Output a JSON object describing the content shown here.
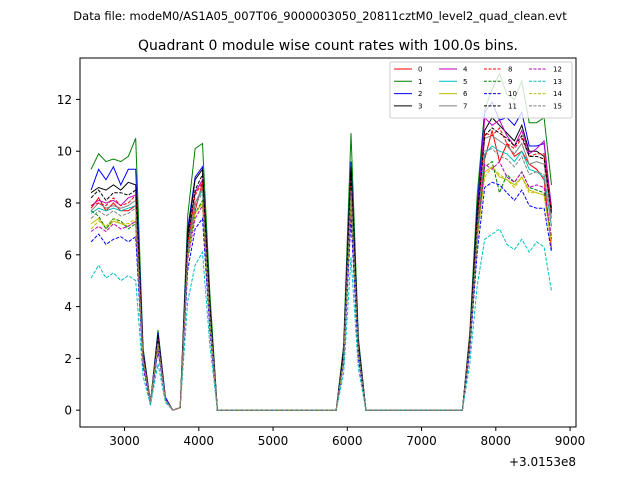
{
  "chart_data": {
    "type": "line",
    "suptitle": "Data file: modeM0/AS1A05_007T06_9000003050_20811cztM0_level2_quad_clean.evt",
    "title": "Quadrant 0 module wise count rates with 100.0s bins.",
    "xlabel": "",
    "ylabel": "",
    "x_offset_label": "+3.0153e8",
    "xlim": [
      2400,
      9080
    ],
    "ylim": [
      -0.65,
      13.6
    ],
    "xticks": [
      3000,
      4000,
      5000,
      6000,
      7000,
      8000,
      9000
    ],
    "yticks": [
      0,
      2,
      4,
      6,
      8,
      10,
      12
    ],
    "legend_position": "top-right",
    "x": [
      2550,
      2650,
      2750,
      2850,
      2950,
      3050,
      3150,
      3250,
      3350,
      3450,
      3550,
      3650,
      3750,
      3850,
      3950,
      4050,
      4150,
      4250,
      5850,
      5950,
      6050,
      6150,
      6250,
      7550,
      7650,
      7750,
      7850,
      7950,
      8050,
      8150,
      8250,
      8350,
      8450,
      8550,
      8650,
      8750
    ],
    "series": [
      {
        "name": "0",
        "color": "#ff0000",
        "dash": "solid",
        "values": [
          7.8,
          8.2,
          7.7,
          8.0,
          7.7,
          7.7,
          7.9,
          2.0,
          0.3,
          2.6,
          0.4,
          0,
          0.1,
          6.0,
          7.7,
          8.8,
          3.5,
          0,
          0,
          2.0,
          8.4,
          2.2,
          0,
          0,
          2.5,
          6.9,
          9.7,
          10.8,
          9.6,
          10.3,
          9.8,
          10.0,
          9.5,
          9.3,
          8.9,
          6.2
        ]
      },
      {
        "name": "1",
        "color": "#008000",
        "dash": "solid",
        "values": [
          9.3,
          9.9,
          9.6,
          9.7,
          9.6,
          9.8,
          10.5,
          2.4,
          0.3,
          3.1,
          0.5,
          0,
          0.1,
          7.5,
          10.1,
          10.3,
          4.5,
          0,
          0,
          2.5,
          10.7,
          2.8,
          0,
          0,
          3.0,
          8.3,
          11.6,
          12.4,
          13.0,
          12.2,
          12.0,
          12.7,
          11.1,
          11.1,
          11.3,
          8.7
        ]
      },
      {
        "name": "2",
        "color": "#0000ff",
        "dash": "solid",
        "values": [
          8.5,
          9.3,
          8.9,
          9.4,
          8.7,
          9.3,
          9.3,
          2.3,
          0.3,
          3.0,
          0.5,
          0,
          0.1,
          7.0,
          9.0,
          9.4,
          4.0,
          0,
          0,
          2.3,
          9.6,
          2.6,
          0,
          0,
          2.8,
          7.8,
          11.5,
          11.9,
          11.2,
          11.3,
          11.0,
          11.5,
          10.2,
          10.2,
          10.3,
          7.8
        ]
      },
      {
        "name": "3",
        "color": "#000000",
        "dash": "solid",
        "values": [
          8.4,
          8.6,
          8.5,
          8.7,
          8.5,
          8.8,
          8.7,
          2.2,
          0.3,
          2.9,
          0.4,
          0,
          0.1,
          6.8,
          8.9,
          9.3,
          4.0,
          0,
          0,
          2.2,
          9.4,
          2.5,
          0,
          0,
          2.8,
          7.6,
          10.8,
          11.3,
          11.0,
          10.7,
          10.4,
          11.0,
          10.0,
          10.0,
          9.8,
          7.8
        ]
      },
      {
        "name": "4",
        "color": "#bf00bf",
        "dash": "solid",
        "values": [
          7.9,
          8.1,
          8.0,
          8.1,
          7.9,
          8.2,
          8.3,
          2.1,
          0.3,
          2.8,
          0.4,
          0,
          0.1,
          6.5,
          8.4,
          8.9,
          3.8,
          0,
          0,
          2.1,
          9.0,
          2.4,
          0,
          0,
          2.7,
          7.3,
          11.3,
          11.0,
          11.2,
          10.6,
          10.2,
          10.8,
          9.9,
          10.1,
          10.4,
          7.7
        ]
      },
      {
        "name": "5",
        "color": "#00bfbf",
        "dash": "solid",
        "values": [
          7.6,
          7.8,
          7.7,
          7.8,
          7.7,
          7.8,
          7.9,
          2.0,
          0.3,
          2.7,
          0.4,
          0,
          0.1,
          6.3,
          8.0,
          8.5,
          3.6,
          0,
          0,
          2.0,
          8.6,
          2.3,
          0,
          0,
          2.6,
          7.0,
          9.9,
          10.2,
          10.0,
          9.9,
          9.6,
          10.0,
          9.3,
          9.2,
          9.0,
          7.1
        ]
      },
      {
        "name": "6",
        "color": "#bfbf00",
        "dash": "solid",
        "values": [
          7.2,
          7.4,
          7.0,
          7.3,
          7.2,
          7.1,
          7.3,
          1.9,
          0.3,
          2.5,
          0.4,
          0,
          0.1,
          5.9,
          7.6,
          8.0,
          3.4,
          0,
          0,
          1.9,
          8.0,
          2.1,
          0,
          0,
          2.4,
          6.6,
          9.2,
          9.4,
          9.0,
          8.9,
          8.7,
          9.0,
          8.5,
          8.4,
          8.3,
          6.5
        ]
      },
      {
        "name": "7",
        "color": "#808080",
        "dash": "solid",
        "values": [
          7.7,
          8.0,
          7.8,
          7.9,
          7.8,
          7.9,
          8.1,
          2.0,
          0.3,
          2.7,
          0.4,
          0,
          0.1,
          6.2,
          8.0,
          8.6,
          3.7,
          0,
          0,
          2.0,
          8.7,
          2.3,
          0,
          0,
          2.6,
          7.1,
          10.5,
          10.6,
          10.4,
          10.2,
          9.9,
          10.3,
          9.5,
          9.6,
          9.5,
          7.4
        ]
      },
      {
        "name": "8",
        "color": "#ff0000",
        "dash": "dashed",
        "values": [
          7.9,
          8.0,
          7.9,
          8.2,
          7.9,
          8.0,
          8.3,
          2.1,
          0.3,
          2.7,
          0.4,
          0,
          0.1,
          6.4,
          8.3,
          8.8,
          3.7,
          0,
          0,
          2.1,
          8.8,
          2.4,
          0,
          0,
          2.7,
          7.2,
          10.7,
          10.6,
          10.9,
          10.3,
          10.1,
          10.5,
          9.8,
          9.9,
          9.9,
          7.6
        ]
      },
      {
        "name": "9",
        "color": "#008000",
        "dash": "dashed",
        "values": [
          7.7,
          7.5,
          7.0,
          7.4,
          7.3,
          7.0,
          7.2,
          1.9,
          0.3,
          2.5,
          0.4,
          0,
          0.1,
          6.0,
          7.6,
          8.1,
          3.4,
          0,
          0,
          1.9,
          8.0,
          2.2,
          0,
          0,
          2.5,
          6.8,
          9.4,
          9.6,
          8.4,
          9.1,
          8.8,
          9.2,
          8.6,
          8.5,
          8.4,
          6.6
        ]
      },
      {
        "name": "10",
        "color": "#0000ff",
        "dash": "dashed",
        "values": [
          6.5,
          6.8,
          6.4,
          6.6,
          6.7,
          6.5,
          6.7,
          1.7,
          0.2,
          2.3,
          0.4,
          0,
          0.1,
          5.4,
          7.0,
          7.4,
          3.1,
          0,
          0,
          1.8,
          7.4,
          2.0,
          0,
          0,
          2.3,
          6.1,
          8.6,
          8.8,
          8.7,
          8.4,
          8.1,
          8.5,
          7.9,
          7.8,
          7.8,
          6.1
        ]
      },
      {
        "name": "11",
        "color": "#000000",
        "dash": "dashed",
        "values": [
          8.2,
          8.5,
          8.1,
          8.4,
          8.4,
          8.3,
          8.5,
          2.1,
          0.3,
          2.8,
          0.4,
          0,
          0.1,
          6.6,
          8.5,
          9.1,
          3.9,
          0,
          0,
          2.2,
          9.2,
          2.5,
          0,
          0,
          2.7,
          7.4,
          10.6,
          10.9,
          10.7,
          10.5,
          10.2,
          10.6,
          9.8,
          9.8,
          9.7,
          7.6
        ]
      },
      {
        "name": "12",
        "color": "#bf00bf",
        "dash": "dashed",
        "values": [
          6.9,
          7.1,
          6.9,
          7.2,
          7.0,
          7.1,
          7.3,
          1.8,
          0.3,
          2.4,
          0.4,
          0,
          0.1,
          5.8,
          7.4,
          7.9,
          3.3,
          0,
          0,
          1.9,
          7.9,
          2.1,
          0,
          0,
          2.4,
          6.5,
          9.5,
          9.3,
          9.6,
          9.0,
          8.8,
          9.2,
          8.6,
          8.7,
          8.6,
          6.7
        ]
      },
      {
        "name": "13",
        "color": "#00bfbf",
        "dash": "dashed",
        "values": [
          5.1,
          5.6,
          5.1,
          5.3,
          5.0,
          5.2,
          5.0,
          1.3,
          0.2,
          1.8,
          0.3,
          0,
          0.1,
          4.2,
          5.6,
          6.1,
          2.5,
          0,
          0,
          1.4,
          5.9,
          1.6,
          0,
          0,
          1.8,
          4.8,
          6.6,
          6.8,
          7.0,
          6.4,
          6.2,
          6.6,
          6.1,
          6.5,
          6.3,
          4.6
        ]
      },
      {
        "name": "14",
        "color": "#bfbf00",
        "dash": "dashed",
        "values": [
          7.0,
          7.3,
          7.1,
          7.4,
          7.2,
          7.2,
          7.4,
          1.9,
          0.3,
          2.5,
          0.4,
          0,
          0.1,
          5.9,
          7.6,
          8.0,
          3.4,
          0,
          0,
          1.9,
          8.1,
          2.2,
          0,
          0,
          2.5,
          6.6,
          9.0,
          9.4,
          9.1,
          8.9,
          8.6,
          9.0,
          8.4,
          8.4,
          8.3,
          6.4
        ]
      },
      {
        "name": "15",
        "color": "#808080",
        "dash": "dashed",
        "values": [
          7.4,
          7.7,
          7.5,
          7.7,
          7.5,
          7.6,
          7.8,
          2.0,
          0.3,
          2.6,
          0.4,
          0,
          0.1,
          6.1,
          7.9,
          8.4,
          3.6,
          0,
          0,
          2.0,
          8.5,
          2.3,
          0,
          0,
          2.5,
          6.9,
          10.0,
          10.1,
          9.8,
          9.7,
          9.4,
          9.8,
          9.1,
          9.2,
          9.1,
          7.1
        ]
      }
    ]
  }
}
